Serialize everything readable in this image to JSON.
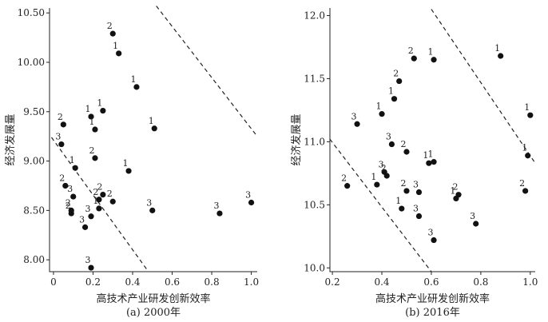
{
  "chart_data": [
    {
      "type": "scatter",
      "caption": "(a) 2000年",
      "xlabel": "高技术产业研发创新效率",
      "ylabel": "经济发展量",
      "xlim": [
        -0.02,
        1.03
      ],
      "ylim": [
        7.88,
        10.55
      ],
      "x_ticks": [
        0,
        0.2,
        0.4,
        0.6,
        0.8,
        1.0
      ],
      "x_tick_labels": [
        "0",
        "0.2",
        "0.4",
        "0.6",
        "0.8",
        "1.0"
      ],
      "y_ticks": [
        8.0,
        8.5,
        9.0,
        9.5,
        10.0,
        10.5
      ],
      "y_tick_labels": [
        "8.00",
        "8.50",
        "9.00",
        "9.50",
        "10.00",
        "10.50"
      ],
      "grid": false,
      "reference_lines": [
        {
          "style": "dashed",
          "from": [
            -0.01,
            9.24
          ],
          "to": [
            0.48,
            7.88
          ]
        },
        {
          "style": "dashed",
          "from": [
            0.52,
            10.57
          ],
          "to": [
            1.03,
            9.25
          ]
        }
      ],
      "points": [
        {
          "x": 0.3,
          "y": 10.29,
          "label": "2"
        },
        {
          "x": 0.33,
          "y": 10.09,
          "label": "1"
        },
        {
          "x": 0.42,
          "y": 9.75,
          "label": "1"
        },
        {
          "x": 0.25,
          "y": 9.51,
          "label": "1"
        },
        {
          "x": 0.19,
          "y": 9.45,
          "label": "1"
        },
        {
          "x": 0.05,
          "y": 9.37,
          "label": "2"
        },
        {
          "x": 0.21,
          "y": 9.32,
          "label": "1"
        },
        {
          "x": 0.51,
          "y": 9.33,
          "label": "1"
        },
        {
          "x": 0.04,
          "y": 9.17,
          "label": "3"
        },
        {
          "x": 0.21,
          "y": 9.03,
          "label": "2"
        },
        {
          "x": 0.11,
          "y": 8.93,
          "label": "1"
        },
        {
          "x": 0.38,
          "y": 8.9,
          "label": "1"
        },
        {
          "x": 0.06,
          "y": 8.75,
          "label": "2"
        },
        {
          "x": 0.25,
          "y": 8.66,
          "label": "2"
        },
        {
          "x": 0.1,
          "y": 8.64,
          "label": "3"
        },
        {
          "x": 0.23,
          "y": 8.61,
          "label": "2"
        },
        {
          "x": 0.3,
          "y": 8.59,
          "label": "2"
        },
        {
          "x": 0.09,
          "y": 8.5,
          "label": "2"
        },
        {
          "x": 0.09,
          "y": 8.47,
          "label": "2"
        },
        {
          "x": 0.23,
          "y": 8.52,
          "label": "1"
        },
        {
          "x": 0.5,
          "y": 8.5,
          "label": "3"
        },
        {
          "x": 0.19,
          "y": 8.44,
          "label": "3"
        },
        {
          "x": 0.16,
          "y": 8.33,
          "label": "3"
        },
        {
          "x": 0.19,
          "y": 7.92,
          "label": "3"
        },
        {
          "x": 0.84,
          "y": 8.47,
          "label": "3"
        },
        {
          "x": 1.0,
          "y": 8.58,
          "label": "3"
        }
      ]
    },
    {
      "type": "scatter",
      "caption": "(b) 2016年",
      "xlabel": "高技术产业研发创新效率",
      "ylabel": "经济发展量",
      "xlim": [
        0.19,
        1.02
      ],
      "ylim": [
        9.97,
        12.06
      ],
      "x_ticks": [
        0.2,
        0.4,
        0.6,
        0.8,
        1.0
      ],
      "x_tick_labels": [
        "0.2",
        "0.4",
        "0.6",
        "0.8",
        "1.0"
      ],
      "y_ticks": [
        10.0,
        10.5,
        11.0,
        11.5,
        12.0
      ],
      "y_tick_labels": [
        "10.0",
        "10.5",
        "11.0",
        "11.5",
        "12.0"
      ],
      "grid": false,
      "reference_lines": [
        {
          "style": "dashed",
          "from": [
            0.19,
            11.02
          ],
          "to": [
            0.6,
            9.97
          ]
        },
        {
          "style": "dashed",
          "from": [
            0.6,
            12.05
          ],
          "to": [
            1.02,
            10.83
          ]
        }
      ],
      "points": [
        {
          "x": 0.88,
          "y": 11.68,
          "label": "1"
        },
        {
          "x": 0.53,
          "y": 11.66,
          "label": "2"
        },
        {
          "x": 0.61,
          "y": 11.65,
          "label": "1"
        },
        {
          "x": 0.47,
          "y": 11.48,
          "label": "2"
        },
        {
          "x": 0.45,
          "y": 11.34,
          "label": "1"
        },
        {
          "x": 0.4,
          "y": 11.22,
          "label": "1"
        },
        {
          "x": 1.0,
          "y": 11.21,
          "label": "1"
        },
        {
          "x": 0.3,
          "y": 11.14,
          "label": "3"
        },
        {
          "x": 0.44,
          "y": 10.98,
          "label": "3"
        },
        {
          "x": 0.5,
          "y": 10.92,
          "label": "2"
        },
        {
          "x": 0.99,
          "y": 10.89,
          "label": "1"
        },
        {
          "x": 0.61,
          "y": 10.84,
          "label": "1"
        },
        {
          "x": 0.59,
          "y": 10.83,
          "label": "1"
        },
        {
          "x": 0.41,
          "y": 10.76,
          "label": "3"
        },
        {
          "x": 0.42,
          "y": 10.73,
          "label": "2"
        },
        {
          "x": 0.38,
          "y": 10.66,
          "label": "1"
        },
        {
          "x": 0.26,
          "y": 10.65,
          "label": "2"
        },
        {
          "x": 0.5,
          "y": 10.61,
          "label": "2"
        },
        {
          "x": 0.55,
          "y": 10.6,
          "label": "3"
        },
        {
          "x": 0.98,
          "y": 10.61,
          "label": "2"
        },
        {
          "x": 0.71,
          "y": 10.58,
          "label": "2"
        },
        {
          "x": 0.7,
          "y": 10.55,
          "label": "1"
        },
        {
          "x": 0.48,
          "y": 10.47,
          "label": "1"
        },
        {
          "x": 0.55,
          "y": 10.41,
          "label": "3"
        },
        {
          "x": 0.78,
          "y": 10.35,
          "label": "3"
        },
        {
          "x": 0.61,
          "y": 10.22,
          "label": "3"
        }
      ]
    }
  ]
}
